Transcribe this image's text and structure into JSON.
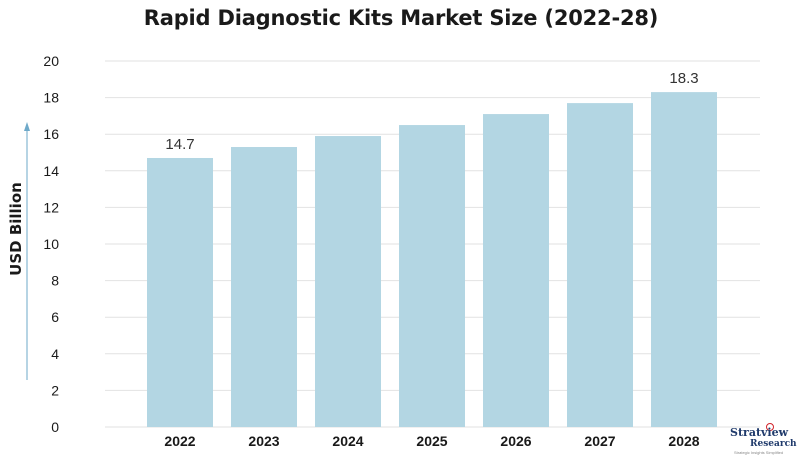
{
  "title": "Rapid Diagnostic Kits Market Size (2022-28)",
  "logo": {
    "name": "Stratview",
    "sub": "Research",
    "tagline": "Strategic Insights Simplified"
  },
  "colors": {
    "bar": "#b3d6e3",
    "grid": "#e2e2e2",
    "axis_arrow": "#6ea9c9",
    "text": "#1a1a1a"
  },
  "chart_data": {
    "type": "bar",
    "title": "Rapid Diagnostic Kits Market Size (2022-28)",
    "categories": [
      "2022",
      "2023",
      "2024",
      "2025",
      "2026",
      "2027",
      "2028"
    ],
    "values": [
      14.7,
      15.3,
      15.9,
      16.5,
      17.1,
      17.7,
      18.3
    ],
    "data_labels": [
      {
        "index": 0,
        "text": "14.7"
      },
      {
        "index": 6,
        "text": "18.3"
      }
    ],
    "xlabel": "",
    "ylabel": "USD Billion",
    "ylim": [
      0,
      20
    ],
    "yticks": [
      0,
      2,
      4,
      6,
      8,
      10,
      12,
      14,
      16,
      18,
      20
    ],
    "grid": true,
    "legend": "none"
  }
}
